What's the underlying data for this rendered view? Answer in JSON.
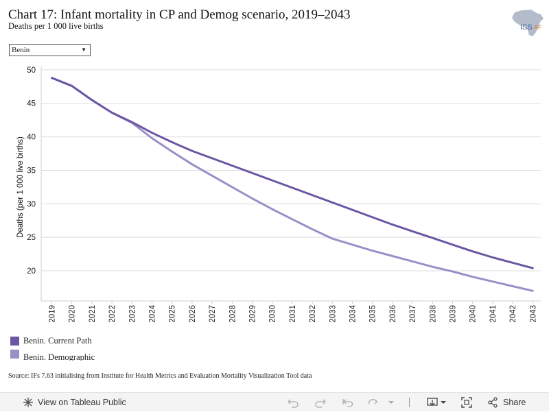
{
  "header": {
    "title": "Chart 17: Infant mortality in CP and Demog scenario, 2019–2043",
    "subtitle": "Deaths per 1 000 live births",
    "logo_text": "ISS",
    "logo_text_suffix": "AF"
  },
  "filter": {
    "selected": "Benin"
  },
  "chart_data": {
    "type": "line",
    "ylabel": "Deaths (per 1 000 live births)",
    "ylim": [
      15.5,
      50.5
    ],
    "yticks": [
      20,
      25,
      30,
      35,
      40,
      45,
      50
    ],
    "grid": true,
    "x": [
      "2019",
      "2020",
      "2021",
      "2022",
      "2023",
      "2024",
      "2025",
      "2026",
      "2027",
      "2028",
      "2029",
      "2030",
      "2031",
      "2032",
      "2033",
      "2034",
      "2035",
      "2036",
      "2037",
      "2038",
      "2039",
      "2040",
      "2041",
      "2042",
      "2043"
    ],
    "series": [
      {
        "name": "Benin. Current Path",
        "color": "#6a56a4",
        "values": [
          48.8,
          47.6,
          45.5,
          43.6,
          42.2,
          40.6,
          39.2,
          37.9,
          36.8,
          35.7,
          34.6,
          33.5,
          32.4,
          31.3,
          30.2,
          29.1,
          28.0,
          26.9,
          25.9,
          24.9,
          23.9,
          22.9,
          22.0,
          21.2,
          20.4
        ]
      },
      {
        "name": "Benin. Demographic",
        "color": "#9c8fc7",
        "values": [
          48.8,
          47.6,
          45.5,
          43.6,
          42.1,
          39.8,
          37.8,
          35.9,
          34.2,
          32.5,
          30.8,
          29.2,
          27.7,
          26.2,
          24.8,
          23.9,
          23.0,
          22.2,
          21.4,
          20.6,
          19.9,
          19.1,
          18.4,
          17.7,
          17.0
        ]
      }
    ]
  },
  "source": "Source: IFs 7.63 initialising from Institute for Health Metrics and Evaluation Mortality Visualization Tool data",
  "toolbar": {
    "view_label": "View on Tableau Public",
    "share_label": "Share"
  }
}
